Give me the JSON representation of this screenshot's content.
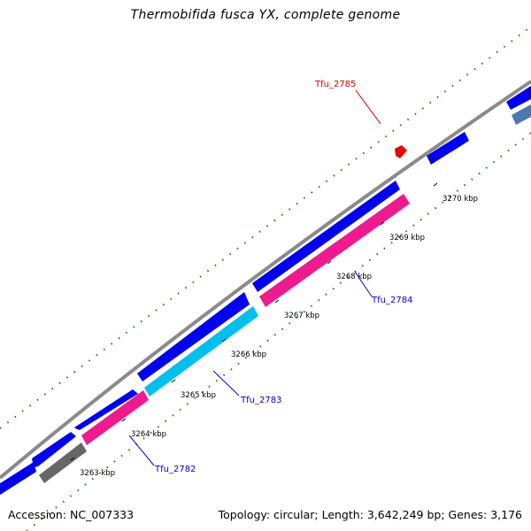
{
  "title": "Thermobifida fusca YX, complete genome",
  "footer": {
    "accession": "Accession: NC_007333",
    "topology": "Topology: circular; Length: 3,642,249 bp; Genes: 3,176"
  },
  "colors": {
    "backbone": "#8a8a8a",
    "gc_dots": "#1a7a1a",
    "forward_gene": "#0000ee",
    "forward_gene_alt": "#4a78b0",
    "pink_gene": "#ee1a8e",
    "cyan_gene": "#00bfee",
    "gray_gene": "#666666",
    "red_marker": "#ee0000",
    "blue_label": "#0000cc",
    "red_label": "#cc0000"
  },
  "scale": {
    "ticks": [
      {
        "label": "3263 kbp"
      },
      {
        "label": "3264 kbp"
      },
      {
        "label": "3265 kbp"
      },
      {
        "label": "3266 kbp"
      },
      {
        "label": "3267 kbp"
      },
      {
        "label": "3268 kbp"
      },
      {
        "label": "3269 kbp"
      },
      {
        "label": "3270 kbp"
      }
    ]
  },
  "gene_labels": [
    {
      "name": "Tfu_2785",
      "color": "red"
    },
    {
      "name": "Tfu_2784",
      "color": "blue"
    },
    {
      "name": "Tfu_2783",
      "color": "blue"
    },
    {
      "name": "Tfu_2782",
      "color": "blue"
    }
  ]
}
